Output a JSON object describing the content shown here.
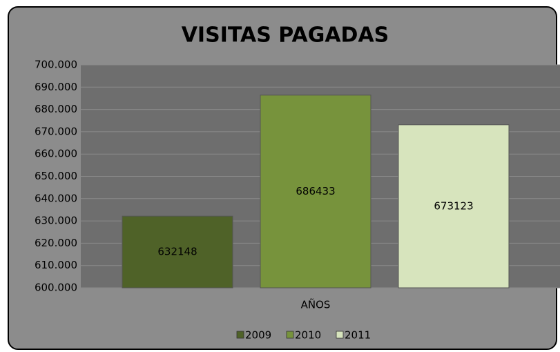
{
  "chart_data": {
    "type": "bar",
    "title": "VISITAS PAGADAS",
    "categories": [
      "AÑOS"
    ],
    "series": [
      {
        "name": "2009",
        "color": "#4f6228",
        "values": [
          632148
        ]
      },
      {
        "name": "2010",
        "color": "#77933c",
        "values": [
          686433
        ]
      },
      {
        "name": "2011",
        "color": "#d7e4bd",
        "values": [
          673123
        ]
      }
    ],
    "ylim": [
      600000,
      700000
    ],
    "yticks": [
      {
        "value": 600000,
        "label": "600.000"
      },
      {
        "value": 610000,
        "label": "610.000"
      },
      {
        "value": 620000,
        "label": "620.000"
      },
      {
        "value": 630000,
        "label": "630.000"
      },
      {
        "value": 640000,
        "label": "640.000"
      },
      {
        "value": 650000,
        "label": "650.000"
      },
      {
        "value": 660000,
        "label": "660.000"
      },
      {
        "value": 670000,
        "label": "670.000"
      },
      {
        "value": 680000,
        "label": "680.000"
      },
      {
        "value": 690000,
        "label": "690.000"
      },
      {
        "value": 700000,
        "label": "700.000"
      }
    ],
    "grid": true,
    "legend": "bottom"
  }
}
